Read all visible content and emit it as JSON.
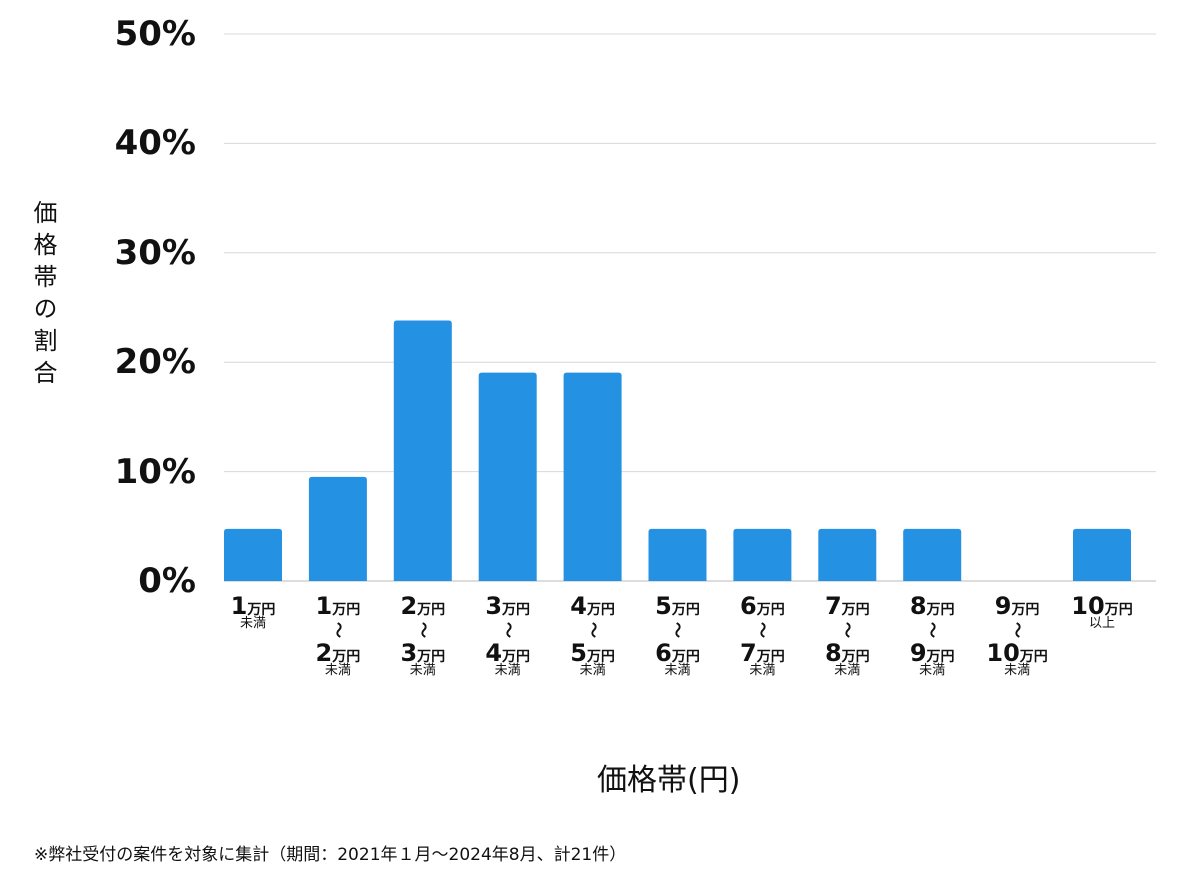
{
  "chart_data": {
    "type": "bar",
    "title": "",
    "xlabel": "価格帯(円)",
    "ylabel": "価格帯の割合",
    "ylim": [
      0,
      50
    ],
    "yticks": [
      "0%",
      "10%",
      "20%",
      "30%",
      "40%",
      "50%"
    ],
    "ytick_values": [
      0,
      10,
      20,
      30,
      40,
      50
    ],
    "grid": true,
    "bar_color": "#2491e3",
    "range_mark": "〜",
    "categories": [
      {
        "from_num": "1",
        "from_unit": "万円",
        "to_num": "",
        "to_unit": "",
        "suffix": "未満"
      },
      {
        "from_num": "1",
        "from_unit": "万円",
        "to_num": "2",
        "to_unit": "万円",
        "suffix": "未満"
      },
      {
        "from_num": "2",
        "from_unit": "万円",
        "to_num": "3",
        "to_unit": "万円",
        "suffix": "未満"
      },
      {
        "from_num": "3",
        "from_unit": "万円",
        "to_num": "4",
        "to_unit": "万円",
        "suffix": "未満"
      },
      {
        "from_num": "4",
        "from_unit": "万円",
        "to_num": "5",
        "to_unit": "万円",
        "suffix": "未満"
      },
      {
        "from_num": "5",
        "from_unit": "万円",
        "to_num": "6",
        "to_unit": "万円",
        "suffix": "未満"
      },
      {
        "from_num": "6",
        "from_unit": "万円",
        "to_num": "7",
        "to_unit": "万円",
        "suffix": "未満"
      },
      {
        "from_num": "7",
        "from_unit": "万円",
        "to_num": "8",
        "to_unit": "万円",
        "suffix": "未満"
      },
      {
        "from_num": "8",
        "from_unit": "万円",
        "to_num": "9",
        "to_unit": "万円",
        "suffix": "未満"
      },
      {
        "from_num": "9",
        "from_unit": "万円",
        "to_num": "10",
        "to_unit": "万円",
        "suffix": "未満"
      },
      {
        "from_num": "10",
        "from_unit": "万円",
        "to_num": "",
        "to_unit": "",
        "suffix": "以上"
      }
    ],
    "values": [
      4.76,
      9.52,
      23.81,
      19.05,
      19.05,
      4.76,
      4.76,
      4.76,
      4.76,
      0,
      4.76
    ],
    "note": "※弊社受付の案件を対象に集計（期間：2021年１月〜2024年8月、計21件）"
  }
}
